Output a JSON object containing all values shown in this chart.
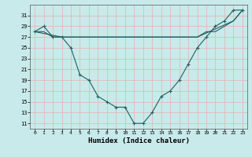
{
  "xlabel": "Humidex (Indice chaleur)",
  "bg_color": "#c8eaea",
  "grid_color": "#e8b0b0",
  "line_color": "#206060",
  "ylim": [
    10,
    33
  ],
  "xlim": [
    -0.5,
    23.5
  ],
  "yticks": [
    11,
    13,
    15,
    17,
    19,
    21,
    23,
    25,
    27,
    29,
    31
  ],
  "xticks": [
    0,
    1,
    2,
    3,
    4,
    5,
    6,
    7,
    8,
    9,
    10,
    11,
    12,
    13,
    14,
    15,
    16,
    17,
    18,
    19,
    20,
    21,
    22,
    23
  ],
  "curve_x": [
    0,
    1,
    2,
    3,
    4,
    5,
    6,
    7,
    8,
    9,
    10,
    11,
    12,
    13,
    14,
    15,
    16,
    17,
    18,
    19,
    20,
    21,
    22,
    23
  ],
  "curve_y": [
    28,
    29,
    27,
    27,
    25,
    20,
    19,
    16,
    15,
    14,
    14,
    11,
    11,
    13,
    16,
    17,
    19,
    22,
    25,
    27,
    29,
    30,
    32,
    32
  ],
  "flat_x": [
    0,
    1,
    2,
    3,
    4,
    5,
    6,
    7,
    8,
    9,
    10,
    11,
    12,
    13,
    14,
    15,
    16,
    17,
    18,
    19,
    20,
    21,
    22,
    23
  ],
  "flat_y": [
    28,
    28,
    27,
    27,
    27,
    27,
    27,
    27,
    27,
    27,
    27,
    27,
    27,
    27,
    27,
    27,
    27,
    27,
    27,
    28,
    28,
    29,
    30,
    32
  ],
  "diag_x": [
    0,
    3,
    18,
    22,
    23
  ],
  "diag_y": [
    28,
    27,
    27,
    30,
    32
  ]
}
